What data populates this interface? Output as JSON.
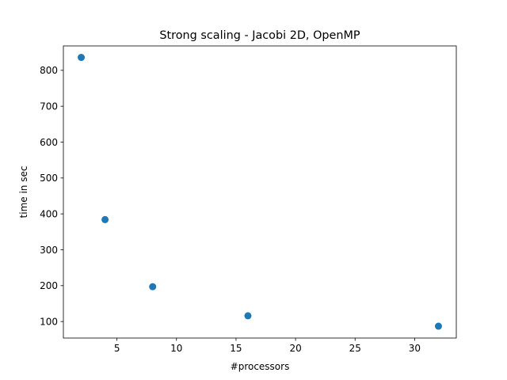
{
  "chart_data": {
    "type": "scatter",
    "title": "Strong scaling - Jacobi 2D, OpenMP",
    "xlabel": "#processors",
    "ylabel": "time in sec",
    "xlim": [
      0.5,
      33.5
    ],
    "ylim": [
      54,
      868
    ],
    "xticks": [
      5,
      10,
      15,
      20,
      25,
      30
    ],
    "yticks": [
      100,
      200,
      300,
      400,
      500,
      600,
      700,
      800
    ],
    "grid": false,
    "legend": "none",
    "marker_color": "#1f77b4",
    "points": [
      {
        "x": 2,
        "y": 836
      },
      {
        "x": 4,
        "y": 384
      },
      {
        "x": 8,
        "y": 197
      },
      {
        "x": 16,
        "y": 116
      },
      {
        "x": 32,
        "y": 87
      }
    ]
  }
}
